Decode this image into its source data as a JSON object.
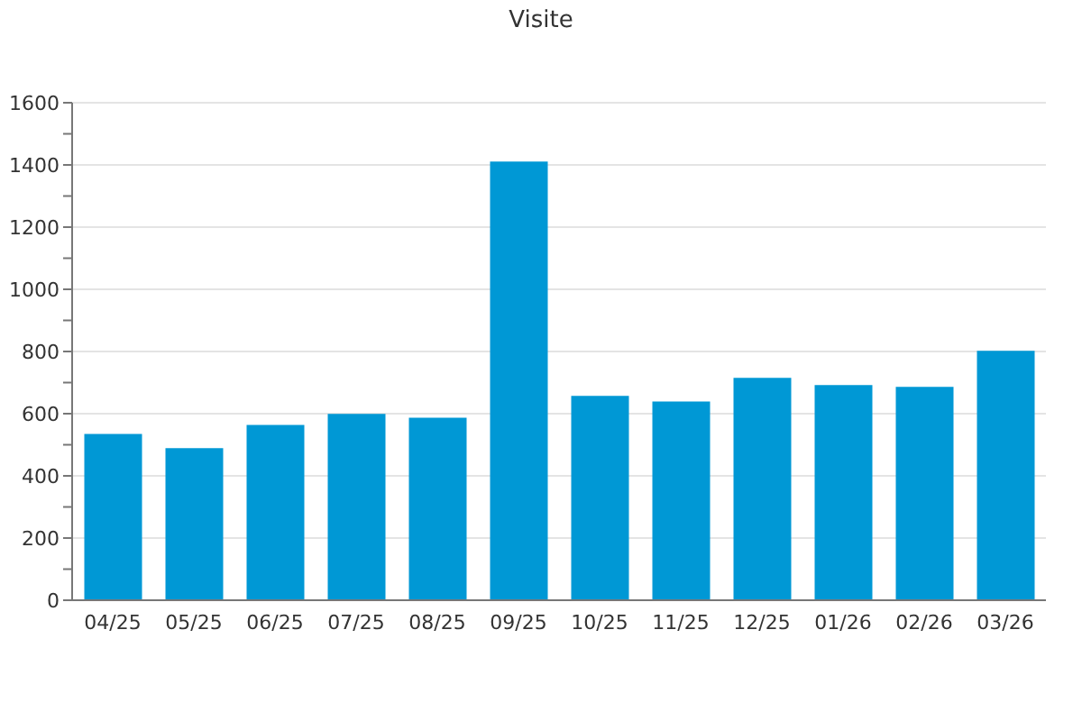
{
  "chart_data": {
    "type": "bar",
    "title": "Visite",
    "categories": [
      "04/25",
      "05/25",
      "06/25",
      "07/25",
      "08/25",
      "09/25",
      "10/25",
      "11/25",
      "12/25",
      "01/26",
      "02/26",
      "03/26"
    ],
    "values": [
      535,
      489,
      564,
      599,
      587,
      1411,
      657,
      639,
      715,
      692,
      686,
      802
    ],
    "color": "#0098d5",
    "ylim": [
      0,
      1600
    ],
    "yticks": [
      0,
      {
        "value": 100,
        "label": null
      },
      200,
      {
        "value": 300,
        "label": null
      },
      400,
      {
        "value": 500,
        "label": null
      },
      600,
      {
        "value": 700,
        "label": null
      },
      800,
      {
        "value": 900,
        "label": null
      },
      1000,
      {
        "value": 1100,
        "label": null
      },
      1200,
      {
        "value": 1300,
        "label": null
      },
      1400,
      {
        "value": 1500,
        "label": null
      },
      1600
    ],
    "grid": "y"
  }
}
